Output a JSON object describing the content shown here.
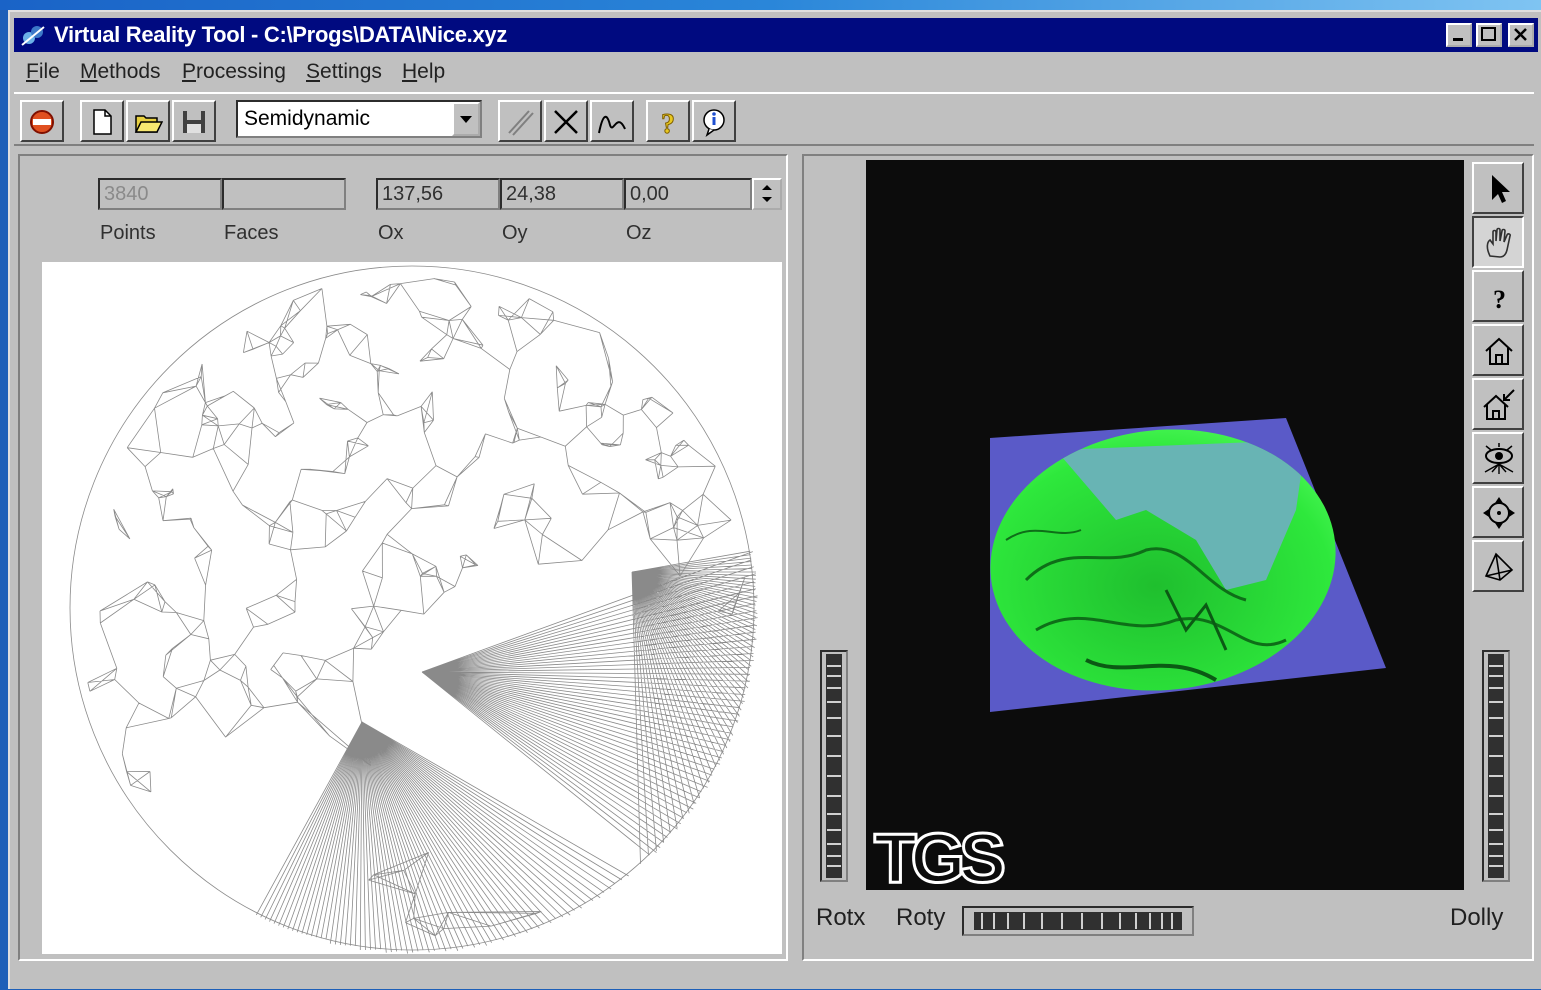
{
  "window": {
    "title": "Virtual Reality Tool - C:\\Progs\\DATA\\Nice.xyz"
  },
  "menu": {
    "file": {
      "accel": "F",
      "rest": "ile"
    },
    "methods": {
      "accel": "M",
      "rest": "ethods"
    },
    "processing": {
      "accel": "P",
      "rest": "rocessing"
    },
    "settings": {
      "accel": "S",
      "rest": "ettings"
    },
    "help": {
      "accel": "H",
      "rest": "elp"
    }
  },
  "toolbar": {
    "mode_select": {
      "value": "Semidynamic"
    }
  },
  "stats": {
    "points_value": "3840",
    "faces_value": "",
    "ox_value": "137,56",
    "oy_value": "24,38",
    "oz_value": "0,00",
    "labels": {
      "points": "Points",
      "faces": "Faces",
      "ox": "Ox",
      "oy": "Oy",
      "oz": "Oz"
    }
  },
  "viewer": {
    "logo_text": "TGS",
    "colors": {
      "background": "#0c0c0c",
      "plane": "#5a5ac8",
      "surface": "#2de63a",
      "water": "#68b4b4"
    }
  },
  "wheels": {
    "rotx": "Rotx",
    "roty": "Roty",
    "dolly": "Dolly"
  },
  "icons": [
    "app-icon",
    "exit-icon",
    "new-file-icon",
    "open-folder-icon",
    "save-disk-icon",
    "dropdown-arrow-icon",
    "pencil-icon",
    "delete-x-icon",
    "curve-icon",
    "help-question-icon",
    "info-icon",
    "select-arrow-icon",
    "hand-pan-icon",
    "question-icon",
    "home-icon",
    "set-home-icon",
    "view-all-icon",
    "seek-icon",
    "projection-icon"
  ]
}
